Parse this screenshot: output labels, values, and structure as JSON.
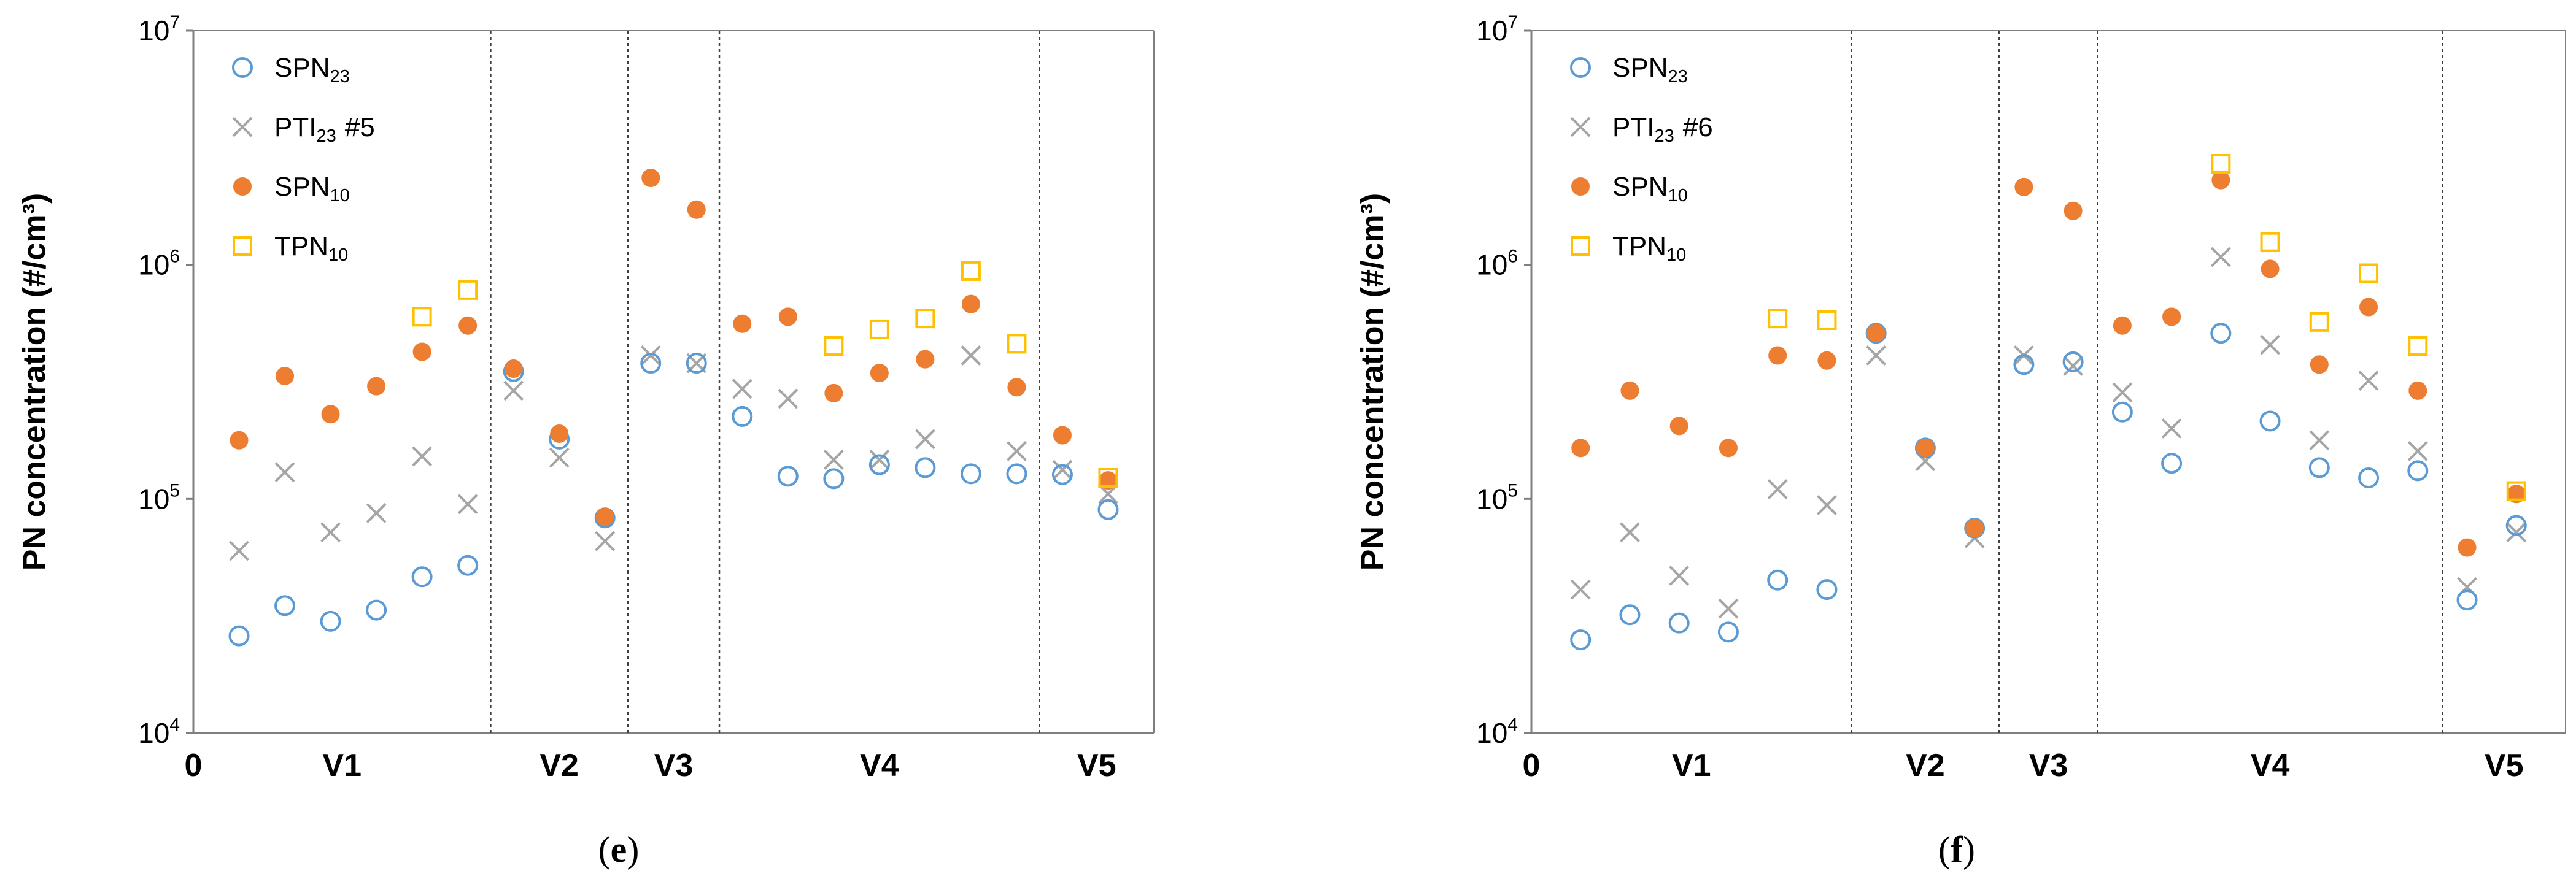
{
  "figure": {
    "panel_e": {
      "open": "(",
      "letter": "e",
      "close": ")"
    },
    "panel_f": {
      "open": "(",
      "letter": "f",
      "close": ")"
    }
  },
  "colors": {
    "spn23": "#5b9bd5",
    "pti23": "#a5a5a5",
    "spn10": "#ed7d31",
    "tpn10": "#ffc000"
  },
  "chart_data": [
    {
      "type": "scatter",
      "panel": "e",
      "ylabel": "PN concentration (#/cm³)",
      "yscale": "log",
      "ylim": [
        10000,
        10000000
      ],
      "xlim": [
        0,
        21
      ],
      "x_origin_label": "0",
      "y_ticks": [
        {
          "value": 10000,
          "base": "10",
          "exp": "4"
        },
        {
          "value": 100000,
          "base": "10",
          "exp": "5"
        },
        {
          "value": 1000000,
          "base": "10",
          "exp": "6"
        },
        {
          "value": 10000000,
          "base": "10",
          "exp": "7"
        }
      ],
      "phases": [
        {
          "label": "V1",
          "start": 0,
          "end": 6.5
        },
        {
          "label": "V2",
          "start": 6.5,
          "end": 9.5
        },
        {
          "label": "V3",
          "start": 9.5,
          "end": 11.5
        },
        {
          "label": "V4",
          "start": 11.5,
          "end": 18.5
        },
        {
          "label": "V5",
          "start": 18.5,
          "end": 21
        }
      ],
      "legend": [
        {
          "key": "spn23",
          "name": "SPN23",
          "base": "SPN",
          "sub": "23",
          "suffix": "",
          "marker": "circle-open"
        },
        {
          "key": "pti23",
          "name": "PTI23 #5",
          "base": "PTI",
          "sub": "23",
          "suffix": "#5",
          "marker": "cross"
        },
        {
          "key": "spn10",
          "name": "SPN10",
          "base": "SPN",
          "sub": "10",
          "suffix": "",
          "marker": "circle-filled"
        },
        {
          "key": "tpn10",
          "name": "TPN10",
          "base": "TPN",
          "sub": "10",
          "suffix": "",
          "marker": "square-open"
        }
      ],
      "series": [
        {
          "key": "spn23",
          "name": "SPN23",
          "x": [
            1,
            2,
            3,
            4,
            5,
            6,
            7,
            8,
            9,
            10,
            11,
            12,
            13,
            14,
            15,
            16,
            17,
            18,
            19,
            20
          ],
          "values": [
            26000,
            35000,
            30000,
            33500,
            46500,
            52000,
            350000,
            180000,
            83000,
            380000,
            380000,
            225000,
            125000,
            122000,
            140000,
            136000,
            128000,
            128000,
            127000,
            90000
          ]
        },
        {
          "key": "pti23",
          "name": "PTI23 #5",
          "x": [
            1,
            2,
            3,
            4,
            5,
            6,
            7,
            8,
            9,
            10,
            11,
            12,
            13,
            14,
            15,
            16,
            17,
            18,
            19,
            20
          ],
          "values": [
            60000,
            130000,
            72000,
            87000,
            152000,
            95000,
            290000,
            150000,
            66000,
            410000,
            380000,
            295000,
            268000,
            147000,
            147000,
            180000,
            410000,
            160000,
            133000,
            105000
          ]
        },
        {
          "key": "spn10",
          "name": "SPN10",
          "x": [
            1,
            2,
            3,
            4,
            5,
            6,
            7,
            8,
            9,
            10,
            11,
            12,
            13,
            14,
            15,
            16,
            17,
            18,
            19,
            20
          ],
          "values": [
            178000,
            335000,
            230000,
            303000,
            425000,
            550000,
            360000,
            190000,
            84000,
            2350000,
            1720000,
            560000,
            600000,
            283000,
            345000,
            395000,
            680000,
            300000,
            187000,
            120000
          ]
        },
        {
          "key": "tpn10",
          "name": "TPN10",
          "x": [
            5,
            6,
            14,
            15,
            16,
            17,
            18,
            20
          ],
          "values": [
            600000,
            780000,
            450000,
            530000,
            590000,
            940000,
            460000,
            123000
          ]
        }
      ]
    },
    {
      "type": "scatter",
      "panel": "f",
      "ylabel": "PN concentration (#/cm³)",
      "yscale": "log",
      "ylim": [
        10000,
        10000000
      ],
      "xlim": [
        0,
        21
      ],
      "x_origin_label": "0",
      "y_ticks": [
        {
          "value": 10000,
          "base": "10",
          "exp": "4"
        },
        {
          "value": 100000,
          "base": "10",
          "exp": "5"
        },
        {
          "value": 1000000,
          "base": "10",
          "exp": "6"
        },
        {
          "value": 10000000,
          "base": "10",
          "exp": "7"
        }
      ],
      "phases": [
        {
          "label": "V1",
          "start": 0,
          "end": 6.5
        },
        {
          "label": "V2",
          "start": 6.5,
          "end": 9.5
        },
        {
          "label": "V3",
          "start": 9.5,
          "end": 11.5
        },
        {
          "label": "V4",
          "start": 11.5,
          "end": 18.5
        },
        {
          "label": "V5",
          "start": 18.5,
          "end": 21
        }
      ],
      "legend": [
        {
          "key": "spn23",
          "name": "SPN23",
          "base": "SPN",
          "sub": "23",
          "suffix": "",
          "marker": "circle-open"
        },
        {
          "key": "pti23",
          "name": "PTI23 #6",
          "base": "PTI",
          "sub": "23",
          "suffix": "#6",
          "marker": "cross"
        },
        {
          "key": "spn10",
          "name": "SPN10",
          "base": "SPN",
          "sub": "10",
          "suffix": "",
          "marker": "circle-filled"
        },
        {
          "key": "tpn10",
          "name": "TPN10",
          "base": "TPN",
          "sub": "10",
          "suffix": "",
          "marker": "square-open"
        }
      ],
      "series": [
        {
          "key": "spn23",
          "name": "SPN23",
          "x": [
            1,
            2,
            3,
            4,
            5,
            6,
            7,
            8,
            9,
            10,
            11,
            12,
            13,
            14,
            15,
            16,
            17,
            18,
            19,
            20
          ],
          "values": [
            25000,
            32000,
            29500,
            27000,
            45000,
            41000,
            510000,
            165000,
            75000,
            375000,
            385000,
            235000,
            142000,
            510000,
            215000,
            136000,
            123000,
            132000,
            37000,
            77000
          ]
        },
        {
          "key": "pti23",
          "name": "PTI23 #6",
          "x": [
            1,
            2,
            3,
            4,
            5,
            6,
            7,
            8,
            9,
            10,
            11,
            12,
            13,
            14,
            15,
            16,
            17,
            18,
            19,
            20
          ],
          "values": [
            41000,
            72000,
            47000,
            34000,
            110000,
            94000,
            410000,
            145000,
            68000,
            410000,
            370000,
            285000,
            200000,
            1080000,
            455000,
            178000,
            320000,
            160000,
            42000,
            72000
          ]
        },
        {
          "key": "spn10",
          "name": "SPN10",
          "x": [
            1,
            2,
            3,
            4,
            5,
            6,
            7,
            8,
            9,
            10,
            11,
            12,
            13,
            14,
            15,
            16,
            17,
            18,
            19,
            20
          ],
          "values": [
            165000,
            290000,
            205000,
            165000,
            410000,
            390000,
            510000,
            165000,
            75000,
            2150000,
            1700000,
            550000,
            600000,
            2300000,
            960000,
            375000,
            660000,
            290000,
            62000,
            105000
          ]
        },
        {
          "key": "tpn10",
          "name": "TPN10",
          "x": [
            5,
            6,
            14,
            15,
            16,
            17,
            18,
            20
          ],
          "values": [
            590000,
            580000,
            2700000,
            1250000,
            570000,
            920000,
            450000,
            108000
          ]
        }
      ]
    }
  ]
}
